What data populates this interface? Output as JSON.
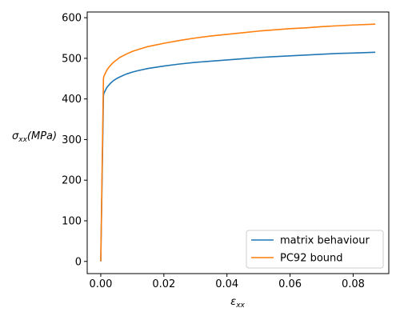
{
  "chart_data": {
    "type": "line",
    "title": "",
    "xlabel": {
      "main": "ε",
      "sub": "xx"
    },
    "ylabel": {
      "main": "σ",
      "sub": "xx",
      "suffix": "(MPa)"
    },
    "xlim": [
      -0.0043,
      0.0913
    ],
    "ylim": [
      -30,
      614
    ],
    "xticks": [
      0.0,
      0.02,
      0.04,
      0.06,
      0.08
    ],
    "xtick_labels": [
      "0.00",
      "0.02",
      "0.04",
      "0.06",
      "0.08"
    ],
    "yticks": [
      0,
      100,
      200,
      300,
      400,
      500,
      600
    ],
    "ytick_labels": [
      "0",
      "100",
      "200",
      "300",
      "400",
      "500",
      "600"
    ],
    "grid": false,
    "legend_position": "bottom-right",
    "series": [
      {
        "name": "matrix behaviour",
        "color": "#1f77b4",
        "x": [
          0,
          0.0001,
          0.0002,
          0.0004,
          0.0006,
          0.00085,
          0.001,
          0.0015,
          0.002,
          0.003,
          0.004,
          0.005,
          0.006,
          0.008,
          0.01,
          0.012,
          0.015,
          0.02,
          0.025,
          0.03,
          0.035,
          0.04,
          0.045,
          0.05,
          0.055,
          0.06,
          0.065,
          0.07,
          0.075,
          0.08,
          0.087
        ],
        "y": [
          0,
          48,
          96,
          192,
          288,
          408,
          414,
          422,
          429,
          438,
          445,
          450,
          454,
          461,
          466,
          470,
          475,
          481,
          486,
          490,
          493,
          496,
          499,
          502,
          504,
          506,
          508,
          510,
          512,
          513,
          515
        ]
      },
      {
        "name": "PC92 bound",
        "color": "#ff7f0e",
        "x": [
          0,
          0.0001,
          0.0002,
          0.0004,
          0.0006,
          0.00085,
          0.001,
          0.0015,
          0.002,
          0.003,
          0.004,
          0.005,
          0.006,
          0.008,
          0.01,
          0.012,
          0.015,
          0.02,
          0.025,
          0.03,
          0.035,
          0.04,
          0.045,
          0.05,
          0.055,
          0.06,
          0.065,
          0.07,
          0.075,
          0.08,
          0.087
        ],
        "y": [
          0,
          53,
          106,
          212,
          318,
          450,
          456,
          464,
          472,
          482,
          490,
          496,
          502,
          510,
          517,
          522,
          529,
          537,
          544,
          550,
          555,
          559,
          563,
          567,
          570,
          573,
          575,
          578,
          580,
          582,
          584
        ]
      }
    ]
  }
}
